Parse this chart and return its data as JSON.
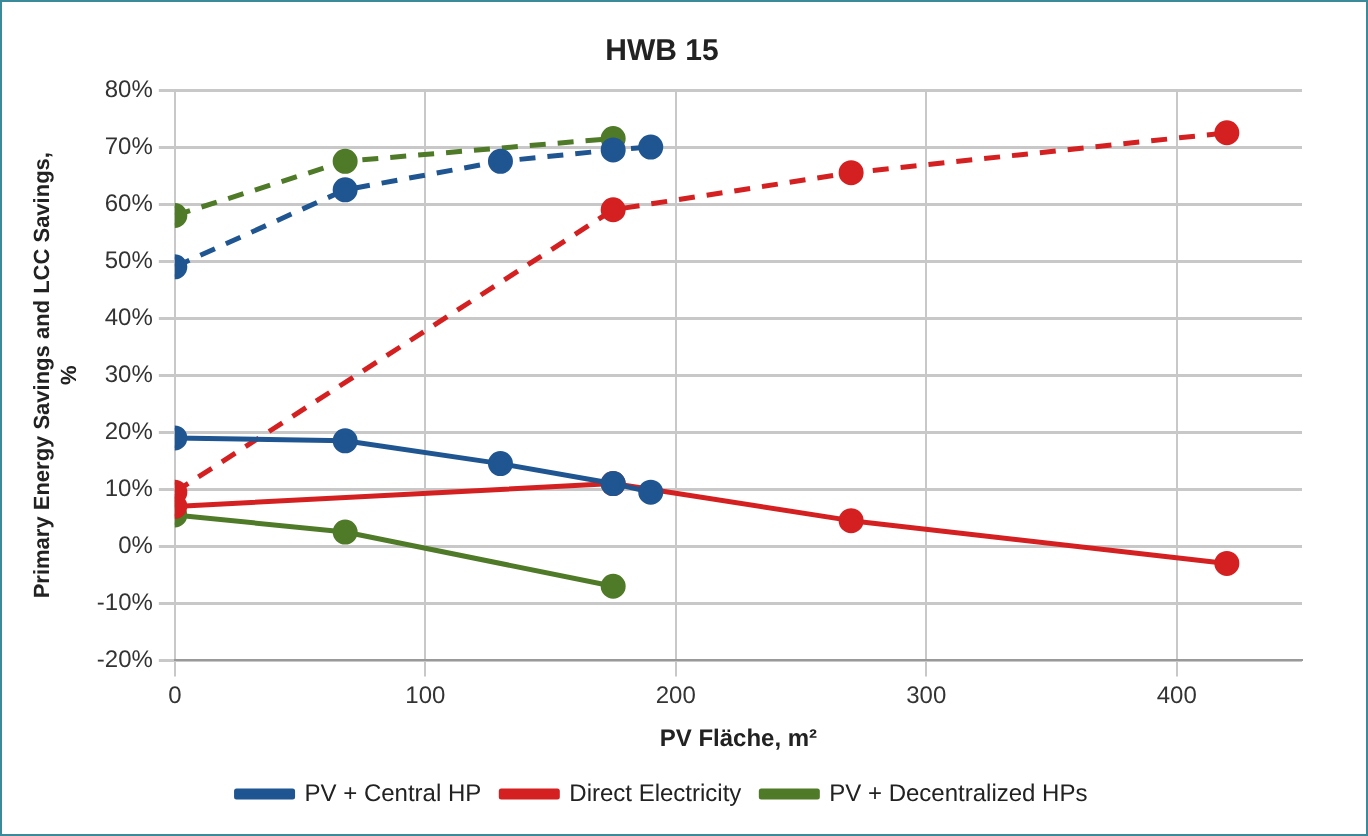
{
  "chart_data": {
    "type": "line",
    "title": "HWB 15",
    "xlabel": "PV Fläche, m²",
    "ylabel": "Primary Energy Savings and LCC Savings, %",
    "xlim": [
      0,
      450
    ],
    "xticks": [
      0,
      100,
      200,
      300,
      400
    ],
    "ylim": [
      -20,
      80
    ],
    "yticks": [
      {
        "value": -20,
        "label": "-20%"
      },
      {
        "value": -10,
        "label": "-10%"
      },
      {
        "value": 0,
        "label": "0%"
      },
      {
        "value": 10,
        "label": "10%"
      },
      {
        "value": 20,
        "label": "20%"
      },
      {
        "value": 30,
        "label": "30%"
      },
      {
        "value": 40,
        "label": "40%"
      },
      {
        "value": 50,
        "label": "50%"
      },
      {
        "value": 60,
        "label": "60%"
      },
      {
        "value": 70,
        "label": "70%"
      },
      {
        "value": 80,
        "label": "80%"
      }
    ],
    "grid": true,
    "legend": "bottom",
    "marker": "circle",
    "series": [
      {
        "name": "PV + Central HP",
        "color": "#1f5591",
        "line_style": "solid",
        "x": [
          0,
          68,
          130,
          175,
          190
        ],
        "values": [
          19,
          18.5,
          14.5,
          11,
          9.5
        ]
      },
      {
        "name": "Direct Electricity",
        "color": "#d42020",
        "line_style": "solid",
        "x": [
          0,
          175,
          270,
          420
        ],
        "values": [
          7,
          11,
          4.5,
          -3
        ]
      },
      {
        "name": "PV + Decentralized HPs",
        "color": "#4f7a28",
        "line_style": "solid",
        "x": [
          0,
          68,
          175
        ],
        "values": [
          5.5,
          2.5,
          -7
        ]
      },
      {
        "color": "#1f5591",
        "line_style": "dashed",
        "x": [
          0,
          68,
          130,
          175,
          190
        ],
        "values": [
          49,
          62.5,
          67.5,
          69.5,
          70
        ]
      },
      {
        "color": "#d42020",
        "line_style": "dashed",
        "x": [
          0,
          175,
          270,
          420
        ],
        "values": [
          9.5,
          59,
          65.5,
          72.5
        ]
      },
      {
        "color": "#4f7a28",
        "line_style": "dashed",
        "x": [
          0,
          68,
          175
        ],
        "values": [
          58,
          67.5,
          71.5
        ]
      }
    ]
  }
}
